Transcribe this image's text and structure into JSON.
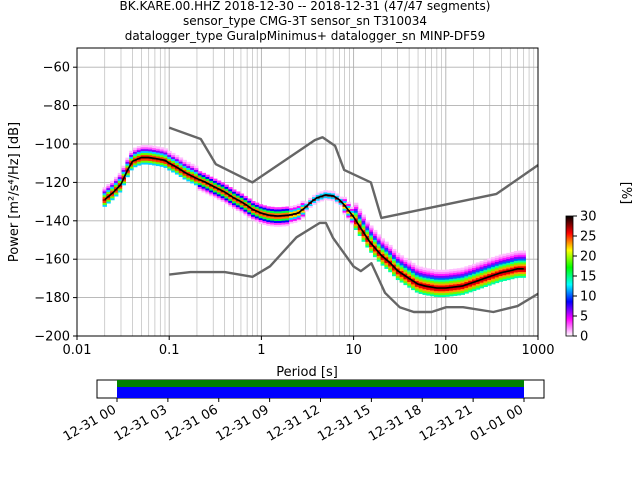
{
  "chart_data": {
    "type": "heatmap",
    "title_lines": [
      "BK.KARE.00.HHZ   2018-12-30 -- 2018-12-31  (47/47 segments)",
      "sensor_type CMG-3T sensor_sn T310034",
      "datalogger_type GuralpMinimus+ datalogger_sn MINP-DF59"
    ],
    "xlabel": "Period [s]",
    "ylabel": "Power [m²/s⁴/Hz] [dB]",
    "xscale": "log",
    "xlim": [
      0.01,
      1000
    ],
    "ylim": [
      -200,
      -50
    ],
    "xticks": [
      {
        "value": 0.01,
        "label": "0.01"
      },
      {
        "value": 0.1,
        "label": "0.1"
      },
      {
        "value": 1,
        "label": "1"
      },
      {
        "value": 10,
        "label": "10"
      },
      {
        "value": 100,
        "label": "100"
      },
      {
        "value": 1000,
        "label": "1000"
      }
    ],
    "yticks": [
      {
        "value": -60,
        "label": "−60"
      },
      {
        "value": -80,
        "label": "−80"
      },
      {
        "value": -100,
        "label": "−100"
      },
      {
        "value": -120,
        "label": "−120"
      },
      {
        "value": -140,
        "label": "−140"
      },
      {
        "value": -160,
        "label": "−160"
      },
      {
        "value": -180,
        "label": "−180"
      },
      {
        "value": -200,
        "label": "−200"
      }
    ],
    "grid": true,
    "colorbar": {
      "label": "[%]",
      "range": [
        0,
        30
      ],
      "ticks": [
        {
          "value": 0,
          "label": "0"
        },
        {
          "value": 5,
          "label": "5"
        },
        {
          "value": 10,
          "label": "10"
        },
        {
          "value": 15,
          "label": "15"
        },
        {
          "value": 20,
          "label": "20"
        },
        {
          "value": 25,
          "label": "25"
        },
        {
          "value": 30,
          "label": "30"
        }
      ],
      "colors": [
        "#ffffff",
        "#ff00ff",
        "#0000ff",
        "#00ffff",
        "#00ff00",
        "#ffff00",
        "#ff0000",
        "#000000"
      ]
    },
    "series": [
      {
        "role": "mean",
        "color": "#000000",
        "x": [
          0.02,
          0.025,
          0.03,
          0.035,
          0.04,
          0.05,
          0.06,
          0.07,
          0.08,
          0.09,
          0.1,
          0.12,
          0.15,
          0.2,
          0.25,
          0.3,
          0.4,
          0.5,
          0.6,
          0.7,
          0.8,
          1.0,
          1.2,
          1.5,
          2.0,
          2.5,
          3.0,
          3.5,
          4.0,
          5.0,
          6.0,
          7.0,
          8.0,
          10,
          12,
          15,
          20,
          25,
          30,
          40,
          50,
          60,
          80,
          100,
          150,
          200,
          300,
          400,
          500,
          600,
          700
        ],
        "y": [
          -129,
          -125,
          -121,
          -114,
          -109,
          -107,
          -107,
          -107.5,
          -108,
          -108.5,
          -110,
          -112,
          -115,
          -118,
          -120,
          -122,
          -125,
          -128,
          -130,
          -132,
          -134,
          -136,
          -137,
          -137.5,
          -137,
          -136,
          -133,
          -130,
          -128,
          -126.5,
          -127,
          -129,
          -132,
          -138,
          -144,
          -151,
          -158,
          -162,
          -166,
          -170,
          -173,
          -174,
          -175,
          -175,
          -174,
          -172,
          -169,
          -167,
          -166,
          -165,
          -165
        ]
      },
      {
        "role": "nhnm",
        "color": "#666666",
        "x": [
          0.1,
          0.22,
          0.32,
          0.8,
          3.8,
          4.6,
          6.3,
          7.9,
          15.4,
          20,
          354.8,
          1000
        ],
        "y": [
          -91.5,
          -97.4,
          -110.5,
          -120,
          -98,
          -96.5,
          -101,
          -113.5,
          -120,
          -138.5,
          -126,
          -111
        ]
      },
      {
        "role": "nlnm",
        "color": "#666666",
        "x": [
          0.1,
          0.17,
          0.4,
          0.8,
          1.24,
          2.4,
          4.3,
          5.0,
          6.0,
          10,
          12,
          15.6,
          21.9,
          31.6,
          45,
          70,
          101,
          154,
          328,
          600,
          1000
        ],
        "y": [
          -168,
          -166.7,
          -166.7,
          -169.2,
          -163.7,
          -148.6,
          -141.1,
          -141.1,
          -149,
          -163.8,
          -166.2,
          -162.1,
          -177.5,
          -185,
          -187.5,
          -187.5,
          -185,
          -185,
          -187.5,
          -184.4,
          -178
        ]
      }
    ]
  },
  "timeline": {
    "ticks": [
      "12-31 00",
      "12-31 03",
      "12-31 06",
      "12-31 09",
      "12-31 12",
      "12-31 15",
      "12-31 18",
      "12-31 21",
      "01-01 00"
    ],
    "bar_colors": {
      "coverage": "#008000",
      "data": "#0000ff"
    }
  }
}
